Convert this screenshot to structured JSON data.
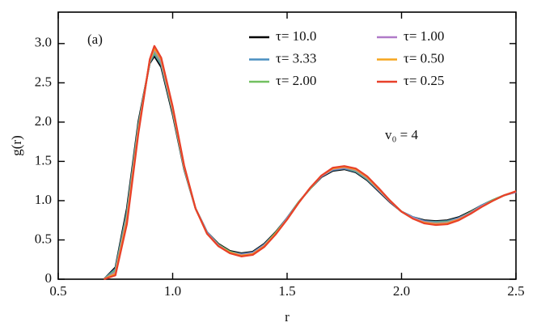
{
  "chart_data": {
    "type": "line",
    "xlabel": "r",
    "ylabel": "g(r)",
    "annotations": [
      "(a)",
      "v₀ = 4"
    ],
    "x": [
      0.7,
      0.75,
      0.8,
      0.85,
      0.9,
      0.92,
      0.95,
      1.0,
      1.05,
      1.1,
      1.15,
      1.2,
      1.25,
      1.3,
      1.35,
      1.4,
      1.45,
      1.5,
      1.55,
      1.6,
      1.65,
      1.7,
      1.75,
      1.8,
      1.85,
      1.9,
      1.95,
      2.0,
      2.05,
      2.1,
      2.15,
      2.2,
      2.25,
      2.3,
      2.35,
      2.4,
      2.45,
      2.5
    ],
    "series": [
      {
        "name": "τ= 10.0",
        "color": "#000000",
        "values": [
          0,
          0.15,
          0.9,
          2.0,
          2.75,
          2.84,
          2.7,
          2.1,
          1.4,
          0.9,
          0.6,
          0.45,
          0.36,
          0.33,
          0.35,
          0.45,
          0.6,
          0.78,
          0.98,
          1.15,
          1.3,
          1.38,
          1.4,
          1.36,
          1.26,
          1.12,
          0.98,
          0.86,
          0.79,
          0.75,
          0.74,
          0.75,
          0.79,
          0.86,
          0.94,
          1.01,
          1.07,
          1.11
        ]
      },
      {
        "name": "τ= 3.33",
        "color": "#4a8fc0",
        "values": [
          0,
          0.13,
          0.85,
          1.96,
          2.76,
          2.87,
          2.73,
          2.13,
          1.41,
          0.9,
          0.6,
          0.44,
          0.35,
          0.32,
          0.34,
          0.44,
          0.59,
          0.78,
          0.98,
          1.15,
          1.31,
          1.39,
          1.41,
          1.37,
          1.27,
          1.13,
          0.99,
          0.86,
          0.79,
          0.74,
          0.73,
          0.74,
          0.78,
          0.85,
          0.94,
          1.01,
          1.07,
          1.11
        ]
      },
      {
        "name": "τ= 2.00",
        "color": "#72c060",
        "values": [
          0,
          0.11,
          0.82,
          1.94,
          2.77,
          2.89,
          2.75,
          2.14,
          1.42,
          0.9,
          0.59,
          0.44,
          0.35,
          0.31,
          0.33,
          0.43,
          0.59,
          0.77,
          0.98,
          1.15,
          1.31,
          1.4,
          1.42,
          1.38,
          1.28,
          1.14,
          0.99,
          0.86,
          0.78,
          0.73,
          0.72,
          0.73,
          0.77,
          0.85,
          0.93,
          1.01,
          1.07,
          1.11
        ]
      },
      {
        "name": "τ= 1.00",
        "color": "#b07ac8",
        "values": [
          0,
          0.09,
          0.78,
          1.91,
          2.78,
          2.92,
          2.77,
          2.16,
          1.43,
          0.9,
          0.59,
          0.43,
          0.34,
          0.31,
          0.33,
          0.43,
          0.58,
          0.77,
          0.97,
          1.16,
          1.31,
          1.4,
          1.42,
          1.39,
          1.29,
          1.14,
          0.99,
          0.86,
          0.78,
          0.73,
          0.71,
          0.72,
          0.77,
          0.84,
          0.93,
          1.0,
          1.07,
          1.11
        ]
      },
      {
        "name": "τ= 0.50",
        "color": "#f5a51e",
        "values": [
          0,
          0.07,
          0.74,
          1.88,
          2.79,
          2.94,
          2.8,
          2.18,
          1.44,
          0.9,
          0.58,
          0.42,
          0.34,
          0.3,
          0.32,
          0.42,
          0.58,
          0.76,
          0.97,
          1.16,
          1.32,
          1.41,
          1.43,
          1.4,
          1.3,
          1.15,
          1.0,
          0.86,
          0.77,
          0.72,
          0.7,
          0.71,
          0.76,
          0.83,
          0.92,
          1.0,
          1.07,
          1.12
        ]
      },
      {
        "name": "τ= 0.25",
        "color": "#e8402a",
        "values": [
          0,
          0.05,
          0.7,
          1.85,
          2.8,
          2.97,
          2.82,
          2.2,
          1.45,
          0.9,
          0.58,
          0.42,
          0.33,
          0.29,
          0.31,
          0.41,
          0.57,
          0.76,
          0.97,
          1.16,
          1.32,
          1.42,
          1.44,
          1.41,
          1.31,
          1.16,
          1.0,
          0.86,
          0.77,
          0.71,
          0.69,
          0.7,
          0.75,
          0.83,
          0.92,
          1.0,
          1.07,
          1.12
        ]
      }
    ],
    "xlim": [
      0.5,
      2.5
    ],
    "xticks": [
      0.5,
      {
        "value": 1,
        "label": "1.0"
      },
      1.5,
      {
        "value": 2,
        "label": "2.0"
      },
      2.5
    ],
    "ylim": [
      0,
      3.4
    ],
    "yticks": [
      0,
      0.5,
      {
        "value": 1,
        "label": "1.0"
      },
      1.5,
      {
        "value": 2,
        "label": "2.0"
      },
      2.5,
      {
        "value": 3,
        "label": "3.0"
      }
    ],
    "legend_loc": "upper right",
    "legend_columns": 2,
    "grid": false
  }
}
